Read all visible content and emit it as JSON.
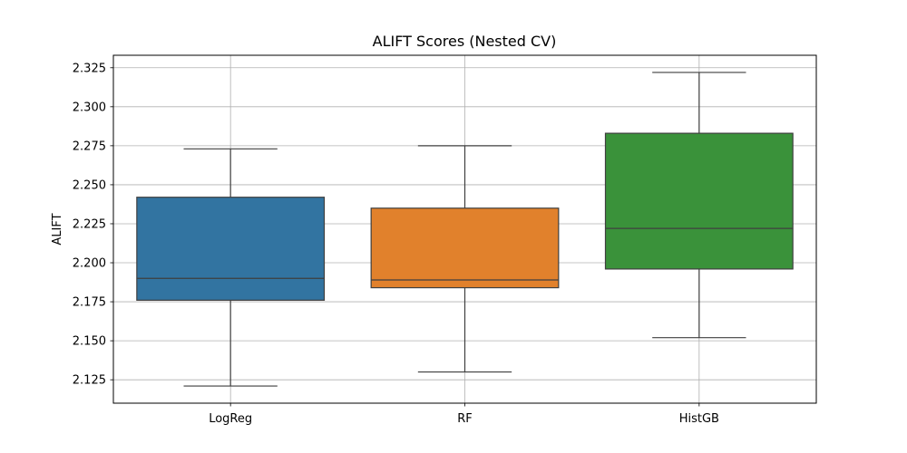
{
  "chart_data": {
    "type": "box",
    "title": "ALIFT Scores (Nested CV)",
    "xlabel": "",
    "ylabel": "ALIFT",
    "ylim": [
      2.11,
      2.333
    ],
    "grid": true,
    "yticks": [
      "2.125",
      "2.150",
      "2.175",
      "2.200",
      "2.225",
      "2.250",
      "2.275",
      "2.300",
      "2.325"
    ],
    "categories": [
      "LogReg",
      "RF",
      "HistGB"
    ],
    "boxes": [
      {
        "name": "LogReg",
        "whisker_low": 2.121,
        "q1": 2.176,
        "median": 2.19,
        "q3": 2.242,
        "whisker_high": 2.273,
        "color": "#3274a1"
      },
      {
        "name": "RF",
        "whisker_low": 2.13,
        "q1": 2.184,
        "median": 2.189,
        "q3": 2.235,
        "whisker_high": 2.275,
        "color": "#e1812c"
      },
      {
        "name": "HistGB",
        "whisker_low": 2.152,
        "q1": 2.196,
        "median": 2.222,
        "q3": 2.283,
        "whisker_high": 2.322,
        "color": "#3a923a"
      }
    ]
  }
}
